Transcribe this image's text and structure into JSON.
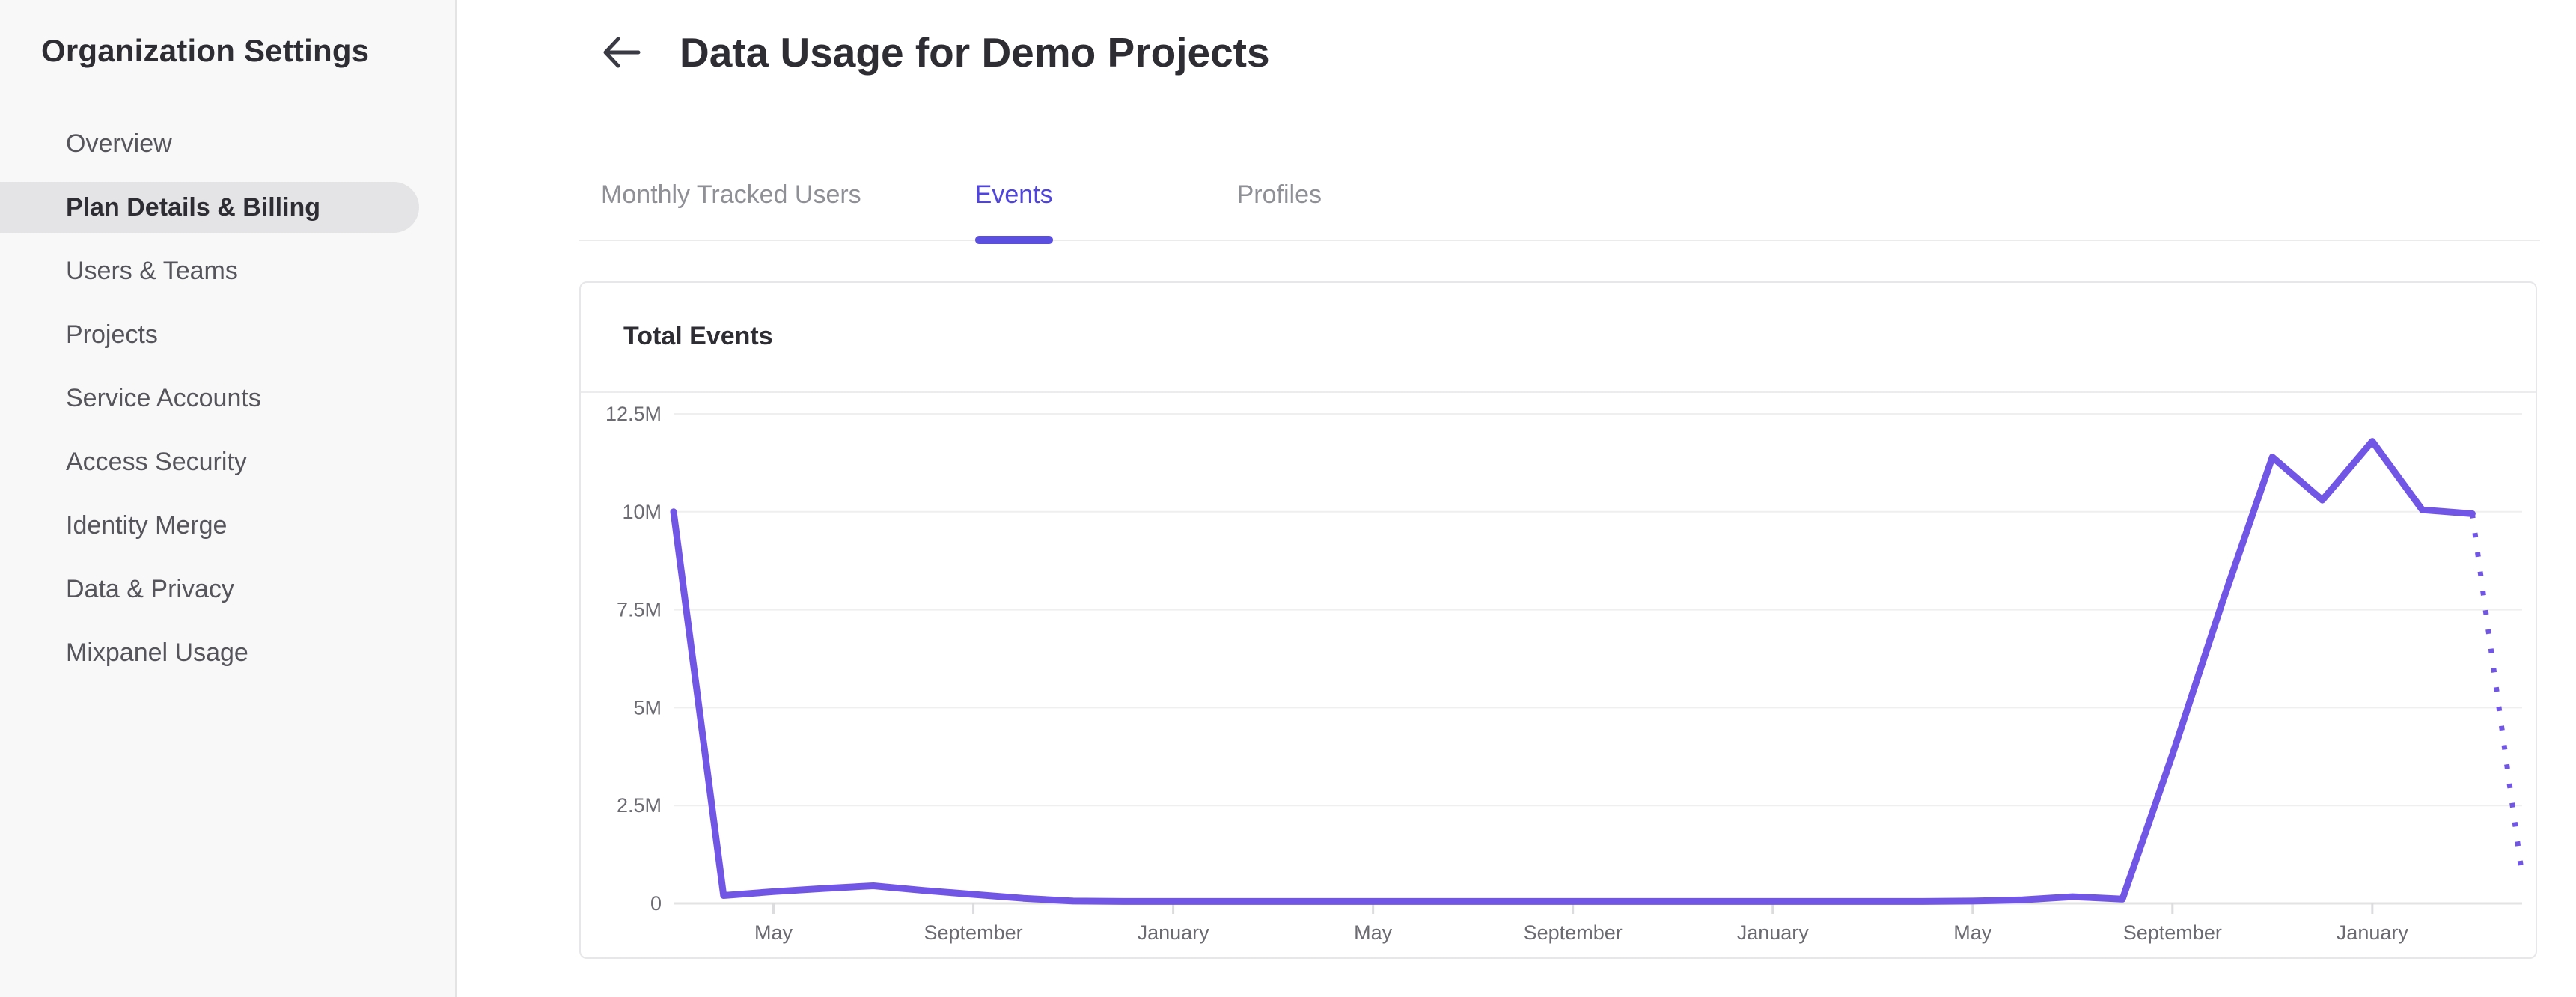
{
  "sidebar": {
    "title": "Organization Settings",
    "items": [
      {
        "label": "Overview",
        "selected": false
      },
      {
        "label": "Plan Details & Billing",
        "selected": true
      },
      {
        "label": "Users & Teams",
        "selected": false
      },
      {
        "label": "Projects",
        "selected": false
      },
      {
        "label": "Service Accounts",
        "selected": false
      },
      {
        "label": "Access Security",
        "selected": false
      },
      {
        "label": "Identity Merge",
        "selected": false
      },
      {
        "label": "Data & Privacy",
        "selected": false
      },
      {
        "label": "Mixpanel Usage",
        "selected": false
      }
    ]
  },
  "header": {
    "title": "Data Usage for Demo Projects"
  },
  "tabs": [
    {
      "label": "Monthly Tracked Users",
      "active": false
    },
    {
      "label": "Events",
      "active": true
    },
    {
      "label": "Profiles",
      "active": false
    }
  ],
  "card": {
    "title": "Total Events"
  },
  "colors": {
    "accent": "#4f44e0",
    "tab_indicator": "#5b4fe0",
    "line": "#7156e6",
    "selected_pill": "#e4e4e6",
    "gridline": "#efeff0",
    "axis_line": "#e3e3e4",
    "tick": "#dcdcde"
  },
  "chart_data": {
    "type": "line",
    "title": "Total Events",
    "ylabel": "",
    "xlabel": "",
    "ylim": [
      0,
      12500000
    ],
    "grid": true,
    "legend": false,
    "y_ticks": [
      "12.5M",
      "10M",
      "7.5M",
      "5M",
      "2.5M",
      "0"
    ],
    "y_tick_values": [
      12500000,
      10000000,
      7500000,
      5000000,
      2500000,
      0
    ],
    "x_ticks": [
      {
        "label": "May",
        "month_index": 2
      },
      {
        "label": "September",
        "month_index": 6
      },
      {
        "label": "January",
        "month_index": 10
      },
      {
        "label": "May",
        "month_index": 14
      },
      {
        "label": "September",
        "month_index": 18
      },
      {
        "label": "January",
        "month_index": 22
      },
      {
        "label": "May",
        "month_index": 26
      },
      {
        "label": "September",
        "month_index": 30
      },
      {
        "label": "January",
        "month_index": 34
      }
    ],
    "series": [
      {
        "name": "Total Events",
        "style": "solid",
        "points": [
          [
            0,
            10000000
          ],
          [
            1,
            200000
          ],
          [
            2,
            300000
          ],
          [
            3,
            380000
          ],
          [
            4,
            450000
          ],
          [
            5,
            330000
          ],
          [
            6,
            230000
          ],
          [
            7,
            130000
          ],
          [
            8,
            60000
          ],
          [
            9,
            50000
          ],
          [
            10,
            50000
          ],
          [
            11,
            50000
          ],
          [
            12,
            50000
          ],
          [
            13,
            50000
          ],
          [
            14,
            50000
          ],
          [
            15,
            50000
          ],
          [
            16,
            50000
          ],
          [
            17,
            50000
          ],
          [
            18,
            50000
          ],
          [
            19,
            50000
          ],
          [
            20,
            50000
          ],
          [
            21,
            50000
          ],
          [
            22,
            50000
          ],
          [
            23,
            50000
          ],
          [
            24,
            50000
          ],
          [
            25,
            50000
          ],
          [
            26,
            60000
          ],
          [
            27,
            90000
          ],
          [
            28,
            170000
          ],
          [
            29,
            110000
          ],
          [
            30,
            3800000
          ],
          [
            31,
            7700000
          ],
          [
            32,
            11400000
          ],
          [
            33,
            10300000
          ],
          [
            34,
            11800000
          ],
          [
            35,
            10050000
          ],
          [
            36,
            9950000
          ]
        ]
      },
      {
        "name": "Total Events (incomplete period)",
        "style": "dotted",
        "points": [
          [
            36,
            9950000
          ],
          [
            37,
            700000
          ]
        ]
      }
    ]
  }
}
